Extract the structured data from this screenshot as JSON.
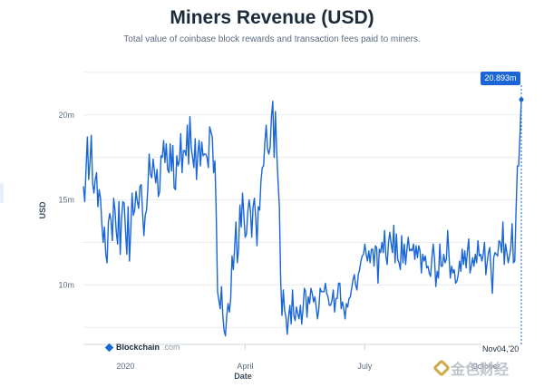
{
  "header": {
    "title": "Miners Revenue (USD)",
    "subtitle": "Total value of coinbase block rewards and transaction fees paid to miners."
  },
  "logo": {
    "brand": "Blockchain",
    "suffix": ".com"
  },
  "tooltip": {
    "value_label": "20.893m",
    "date_label": "Nov04,'20"
  },
  "watermark": {
    "text": "金色财经"
  },
  "colors": {
    "line": "#1a66d6",
    "grid": "#e8ecf1",
    "tooltip_bg": "#1a66d6"
  },
  "chart_data": {
    "type": "line",
    "title": "Miners Revenue (USD)",
    "xlabel": "Date",
    "ylabel": "USD",
    "x_ticks": [
      "2020",
      "April",
      "July",
      "October"
    ],
    "x_tick_index": [
      32,
      123,
      214,
      306
    ],
    "y_ticks": [
      10,
      15,
      20
    ],
    "y_tick_labels": [
      "10m",
      "15m",
      "20m"
    ],
    "ylim": [
      6.5,
      22.6
    ],
    "unit": "million USD",
    "start_date": "2019-11-04",
    "end_date": "2020-11-04",
    "values": [
      15.8,
      14.9,
      16.8,
      18.7,
      16.2,
      17.2,
      18.8,
      16.0,
      15.4,
      16.2,
      16.6,
      14.6,
      15.6,
      15.1,
      13.6,
      12.5,
      13.4,
      11.8,
      11.3,
      13.7,
      14.2,
      13.8,
      12.6,
      15.1,
      14.4,
      13.1,
      12.4,
      14.9,
      11.8,
      13.9,
      14.9,
      14.8,
      13.2,
      11.8,
      14.6,
      11.4,
      13.2,
      15.4,
      14.1,
      14.4,
      15.5,
      14.9,
      14.5,
      15.8,
      15.9,
      14.2,
      12.9,
      14.1,
      14.4,
      15.7,
      17.7,
      16.5,
      16.3,
      17.4,
      16.7,
      16.0,
      16.8,
      15.2,
      15.5,
      17.6,
      17.5,
      18.5,
      17.2,
      18.3,
      16.8,
      16.6,
      18.3,
      16.7,
      18.2,
      15.7,
      15.6,
      17.6,
      17.0,
      17.3,
      18.9,
      16.6,
      17.9,
      17.9,
      17.6,
      19.4,
      17.1,
      19.9,
      18.1,
      17.5,
      16.9,
      18.6,
      16.2,
      17.7,
      18.5,
      17.0,
      18.4,
      17.6,
      17.7,
      17.7,
      17.5,
      16.9,
      19.3,
      19.0,
      18.7,
      16.6,
      17.3,
      14.2,
      9.6,
      9.1,
      8.6,
      9.9,
      8.2,
      7.3,
      7.0,
      8.2,
      8.9,
      8.4,
      9.2,
      11.7,
      10.9,
      12.2,
      13.7,
      11.3,
      12.1,
      14.7,
      13.4,
      15.4,
      14.1,
      12.8,
      13.0,
      14.3,
      15.0,
      14.4,
      12.8,
      14.6,
      15.1,
      14.0,
      12.3,
      14.6,
      14.4,
      16.1,
      16.9,
      17.0,
      18.4,
      19.4,
      18.0,
      17.7,
      18.1,
      19.9,
      20.8,
      17.5,
      20.2,
      17.8,
      16.1,
      14.6,
      10.3,
      8.2,
      9.7,
      8.5,
      8.1,
      7.1,
      8.1,
      8.8,
      7.7,
      9.7,
      8.2,
      7.9,
      8.7,
      8.3,
      8.0,
      8.8,
      7.7,
      8.6,
      9.8,
      9.6,
      8.1,
      9.3,
      8.9,
      9.8,
      9.5,
      9.0,
      9.3,
      8.7,
      8.0,
      8.6,
      9.8,
      9.6,
      9.6,
      9.6,
      10.1,
      9.5,
      9.3,
      8.8,
      8.8,
      9.1,
      9.7,
      8.4,
      9.2,
      9.2,
      10.1,
      10.1,
      8.6,
      9.0,
      8.6,
      8.0,
      8.9,
      8.7,
      9.2,
      9.3,
      9.8,
      10.3,
      10.6,
      10.0,
      9.7,
      10.6,
      10.9,
      11.4,
      11.7,
      11.8,
      12.4,
      11.8,
      11.4,
      12.0,
      11.3,
      12.1,
      12.1,
      11.1,
      12.3,
      12.2,
      10.1,
      12.1,
      11.9,
      12.5,
      11.9,
      13.2,
      11.7,
      11.2,
      12.5,
      13.1,
      12.4,
      11.9,
      13.5,
      11.3,
      13.0,
      11.5,
      11.3,
      10.9,
      12.9,
      11.3,
      12.4,
      11.2,
      12.1,
      12.8,
      12.0,
      12.1,
      12.0,
      12.4,
      11.5,
      12.3,
      11.6,
      12.3,
      12.0,
      10.7,
      11.8,
      11.4,
      11.7,
      11.0,
      11.1,
      10.7,
      10.5,
      11.6,
      12.4,
      11.5,
      9.9,
      10.8,
      10.4,
      12.4,
      11.1,
      11.1,
      11.8,
      11.3,
      11.5,
      13.2,
      11.7,
      10.4,
      11.1,
      10.7,
      10.9,
      10.1,
      10.2,
      10.6,
      11.4,
      10.8,
      12.1,
      11.2,
      12.0,
      11.0,
      12.0,
      12.7,
      10.7,
      11.1,
      11.6,
      11.1,
      11.8,
      11.3,
      12.6,
      11.7,
      11.8,
      11.4,
      11.8,
      12.5,
      10.6,
      11.3,
      11.9,
      12.2,
      10.8,
      9.5,
      11.6,
      11.9,
      11.8,
      11.7,
      12.6,
      12.5,
      11.9,
      13.7,
      11.2,
      12.4,
      11.9,
      11.3,
      11.7,
      12.2,
      13.6,
      11.3,
      11.4,
      14.4,
      17.0,
      17.0,
      18.9,
      20.9
    ]
  }
}
